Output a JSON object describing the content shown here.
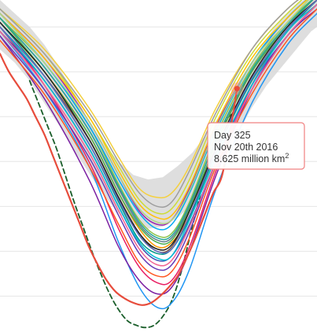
{
  "chart_data": {
    "type": "line",
    "x_range": [
      245,
      352
    ],
    "y_range": [
      3.2,
      10.6
    ],
    "gridlines_y": [
      4,
      5,
      6,
      7,
      8,
      9,
      10
    ],
    "historic_band": {
      "color": "#d8d8d8",
      "x": [
        245,
        250,
        255,
        260,
        265,
        270,
        275,
        280,
        285,
        290,
        295,
        300,
        305,
        310,
        315,
        320,
        325,
        330,
        335,
        340,
        345,
        350,
        352
      ],
      "low": [
        9.5,
        9.2,
        8.8,
        8.3,
        7.8,
        7.25,
        6.75,
        6.25,
        5.85,
        5.6,
        5.5,
        5.55,
        5.75,
        6.05,
        6.5,
        7.0,
        7.6,
        8.2,
        8.7,
        9.1,
        9.5,
        9.9,
        10.0
      ],
      "high": [
        10.6,
        10.3,
        10.0,
        9.6,
        9.1,
        8.5,
        7.9,
        7.4,
        7.0,
        6.7,
        6.6,
        6.65,
        6.9,
        7.2,
        7.65,
        8.1,
        8.65,
        9.2,
        9.75,
        10.2,
        10.5,
        10.7,
        10.8
      ]
    },
    "series": [
      {
        "color": "#e74c3c",
        "dash": false,
        "width": 2.2,
        "highlight": true,
        "x": [
          245,
          248,
          251,
          254,
          257,
          260,
          263,
          266,
          269,
          272,
          275,
          278,
          281,
          284,
          287,
          290,
          293,
          296,
          299,
          302,
          305,
          308,
          311,
          314,
          317,
          320,
          323,
          325
        ],
        "y": [
          9.4,
          9.0,
          8.7,
          8.4,
          8.0,
          7.6,
          7.1,
          6.6,
          6.1,
          5.6,
          5.1,
          4.7,
          4.35,
          4.1,
          3.95,
          3.85,
          3.8,
          3.85,
          4.0,
          4.2,
          4.45,
          4.85,
          5.3,
          5.8,
          6.3,
          6.7,
          7.8,
          8.625
        ]
      },
      {
        "color": "#1a5e2a",
        "dash": true,
        "width": 1.8,
        "x": [
          255,
          258,
          261,
          264,
          267,
          270,
          273,
          276,
          279,
          282,
          285,
          288,
          291,
          294,
          297,
          300,
          303,
          306,
          309,
          312,
          315,
          318,
          321,
          324
        ],
        "y": [
          8.8,
          8.3,
          7.8,
          7.3,
          6.7,
          6.1,
          5.55,
          5.0,
          4.5,
          4.05,
          3.7,
          3.45,
          3.35,
          3.3,
          3.35,
          3.55,
          3.9,
          4.5,
          5.3,
          6.1,
          6.9,
          7.5,
          7.9,
          8.1
        ]
      },
      {
        "color": "#2196f3",
        "x": [
          245,
          260,
          275,
          285,
          292,
          298,
          303,
          309,
          318,
          330,
          342,
          352
        ],
        "y": [
          9.9,
          8.6,
          6.9,
          5.2,
          4.2,
          3.75,
          3.85,
          4.6,
          6.4,
          8.3,
          9.6,
          10.3
        ]
      },
      {
        "color": "#7b1fa2",
        "x": [
          245,
          260,
          275,
          285,
          292,
          298,
          303,
          309,
          318,
          330,
          342,
          352
        ],
        "y": [
          9.8,
          8.4,
          6.6,
          5.1,
          4.35,
          4.05,
          4.2,
          5.0,
          6.7,
          8.6,
          9.8,
          10.4
        ]
      },
      {
        "color": "#e91e63",
        "x": [
          245,
          260,
          275,
          285,
          292,
          298,
          303,
          309,
          318,
          330,
          342,
          352
        ],
        "y": [
          10.0,
          8.7,
          7.0,
          5.5,
          4.65,
          4.3,
          4.35,
          5.1,
          6.8,
          8.7,
          9.9,
          10.5
        ]
      },
      {
        "color": "#ff9800",
        "x": [
          245,
          260,
          275,
          285,
          292,
          298,
          303,
          309,
          318,
          330,
          342,
          352
        ],
        "y": [
          10.1,
          9.0,
          7.6,
          6.3,
          5.5,
          5.1,
          5.2,
          5.8,
          7.3,
          8.9,
          10.0,
          10.6
        ]
      },
      {
        "color": "#8bc34a",
        "x": [
          245,
          260,
          275,
          285,
          292,
          298,
          303,
          309,
          318,
          330,
          342,
          352
        ],
        "y": [
          10.2,
          9.2,
          7.8,
          6.5,
          5.7,
          5.35,
          5.4,
          6.1,
          7.6,
          9.1,
          10.1,
          10.7
        ]
      },
      {
        "color": "#9c27b0",
        "x": [
          245,
          260,
          275,
          285,
          292,
          298,
          303,
          309,
          318,
          330,
          342,
          352
        ],
        "y": [
          10.3,
          9.3,
          7.9,
          6.7,
          5.9,
          5.6,
          5.7,
          6.4,
          7.8,
          9.2,
          10.2,
          10.8
        ]
      },
      {
        "color": "#f4d03f",
        "x": [
          245,
          260,
          275,
          285,
          292,
          298,
          303,
          309,
          318,
          330,
          342,
          352
        ],
        "y": [
          10.4,
          9.5,
          8.2,
          7.1,
          6.4,
          6.2,
          6.3,
          6.9,
          8.2,
          9.5,
          10.4,
          10.9
        ]
      },
      {
        "color": "#3f51b5",
        "x": [
          245,
          260,
          275,
          285,
          292,
          298,
          303,
          309,
          318,
          330,
          342,
          352
        ],
        "y": [
          9.9,
          8.8,
          7.3,
          6.0,
          5.15,
          4.8,
          4.9,
          5.6,
          7.0,
          8.6,
          9.8,
          10.5
        ]
      },
      {
        "color": "#009688",
        "x": [
          245,
          260,
          275,
          285,
          292,
          298,
          303,
          309,
          318,
          330,
          342,
          352
        ],
        "y": [
          10.1,
          8.9,
          7.4,
          6.1,
          5.25,
          4.95,
          5.05,
          5.75,
          7.2,
          8.8,
          9.9,
          10.6
        ]
      },
      {
        "color": "#795548",
        "x": [
          245,
          260,
          275,
          285,
          292,
          298,
          303,
          309,
          318,
          330,
          342,
          352
        ],
        "y": [
          10.0,
          8.9,
          7.5,
          6.2,
          5.4,
          5.0,
          5.1,
          5.9,
          7.4,
          9.0,
          10.0,
          10.6
        ]
      },
      {
        "color": "#607d8b",
        "x": [
          245,
          260,
          275,
          285,
          292,
          298,
          303,
          309,
          318,
          330,
          342,
          352
        ],
        "y": [
          10.2,
          9.1,
          7.7,
          6.4,
          5.6,
          5.25,
          5.3,
          6.0,
          7.5,
          9.0,
          10.0,
          10.7
        ]
      },
      {
        "color": "#ff5722",
        "x": [
          245,
          260,
          275,
          285,
          292,
          298,
          303,
          309,
          318,
          330,
          342,
          352
        ],
        "y": [
          9.7,
          8.5,
          6.9,
          5.6,
          4.75,
          4.45,
          4.55,
          5.3,
          6.9,
          8.5,
          9.7,
          10.4
        ]
      },
      {
        "color": "#03a9f4",
        "x": [
          245,
          260,
          275,
          285,
          292,
          298,
          303,
          309,
          318,
          330,
          342,
          352
        ],
        "y": [
          10.3,
          9.2,
          7.8,
          6.6,
          5.85,
          5.5,
          5.6,
          6.3,
          7.7,
          9.2,
          10.2,
          10.8
        ]
      },
      {
        "color": "#cddc39",
        "x": [
          245,
          260,
          275,
          285,
          292,
          298,
          303,
          309,
          318,
          330,
          342,
          352
        ],
        "y": [
          10.4,
          9.4,
          8.0,
          6.9,
          6.15,
          5.85,
          5.95,
          6.6,
          8.0,
          9.4,
          10.3,
          10.9
        ]
      },
      {
        "color": "#673ab7",
        "x": [
          245,
          260,
          275,
          285,
          292,
          298,
          303,
          309,
          318,
          330,
          342,
          352
        ],
        "y": [
          9.8,
          8.6,
          7.1,
          5.8,
          4.95,
          4.6,
          4.7,
          5.45,
          7.0,
          8.7,
          9.8,
          10.5
        ]
      },
      {
        "color": "#4caf50",
        "x": [
          245,
          260,
          275,
          285,
          292,
          298,
          303,
          309,
          318,
          330,
          342,
          352
        ],
        "y": [
          10.2,
          9.0,
          7.6,
          6.3,
          5.55,
          5.2,
          5.25,
          5.95,
          7.4,
          9.0,
          10.0,
          10.7
        ]
      },
      {
        "color": "#00bcd4",
        "x": [
          245,
          260,
          275,
          285,
          292,
          298,
          303,
          309,
          318,
          330,
          342,
          352
        ],
        "y": [
          10.0,
          8.8,
          7.3,
          6.0,
          5.2,
          4.85,
          4.9,
          5.7,
          7.1,
          8.7,
          9.9,
          10.5
        ]
      },
      {
        "color": "#ffc107",
        "x": [
          245,
          260,
          275,
          285,
          292,
          298,
          303,
          309,
          318,
          330,
          342,
          352
        ],
        "y": [
          10.3,
          9.3,
          8.0,
          6.8,
          6.05,
          5.75,
          5.8,
          6.45,
          7.85,
          9.3,
          10.2,
          10.8
        ]
      },
      {
        "color": "#212121",
        "x": [
          245,
          260,
          275,
          285,
          292,
          298,
          303,
          309,
          318,
          330,
          342,
          352
        ],
        "y": [
          10.1,
          9.0,
          7.5,
          6.2,
          5.4,
          5.05,
          5.15,
          5.9,
          7.3,
          8.9,
          10.0,
          10.6
        ]
      },
      {
        "color": "#9e9e9e",
        "x": [
          245,
          260,
          275,
          285,
          292,
          298,
          303,
          309,
          318,
          330,
          342,
          352
        ],
        "y": [
          10.4,
          9.4,
          8.1,
          7.0,
          6.3,
          6.0,
          6.1,
          6.8,
          8.1,
          9.5,
          10.4,
          10.9
        ]
      },
      {
        "color": "#f06292",
        "x": [
          245,
          260,
          275,
          285,
          292,
          298,
          303,
          309,
          318,
          330,
          342,
          352
        ],
        "y": [
          9.9,
          8.7,
          7.2,
          5.9,
          5.05,
          4.7,
          4.8,
          5.55,
          7.0,
          8.6,
          9.8,
          10.5
        ]
      },
      {
        "color": "#aed581",
        "x": [
          245,
          260,
          275,
          285,
          292,
          298,
          303,
          309,
          318,
          330,
          342,
          352
        ],
        "y": [
          10.3,
          9.2,
          7.9,
          6.7,
          5.95,
          5.65,
          5.7,
          6.35,
          7.75,
          9.2,
          10.1,
          10.8
        ]
      },
      {
        "color": "#5c6bc0",
        "x": [
          245,
          260,
          275,
          285,
          292,
          298,
          303,
          309,
          318,
          330,
          342,
          352
        ],
        "y": [
          10.0,
          8.9,
          7.4,
          6.15,
          5.35,
          5.0,
          5.05,
          5.8,
          7.25,
          8.85,
          9.95,
          10.6
        ]
      },
      {
        "color": "#26a69a",
        "x": [
          245,
          260,
          275,
          285,
          292,
          298,
          303,
          309,
          318,
          330,
          342,
          352
        ],
        "y": [
          10.2,
          9.1,
          7.7,
          6.45,
          5.65,
          5.3,
          5.35,
          6.05,
          7.5,
          9.05,
          10.05,
          10.7
        ]
      }
    ],
    "tooltip": {
      "line1": "Day 325",
      "line2": "Nov 20th 2016",
      "line3_value": "8.625 million km",
      "line3_sup": "2",
      "point": {
        "x": 325,
        "y": 8.625
      },
      "border_color": "#f08080"
    }
  }
}
